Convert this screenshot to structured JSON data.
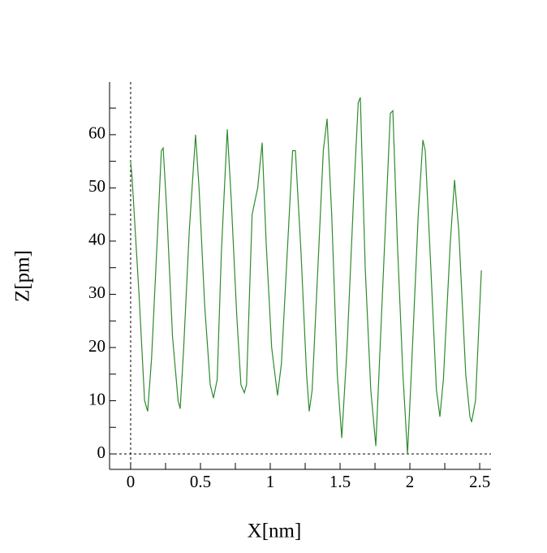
{
  "chart_data": {
    "type": "line",
    "x_label": "X[nm]",
    "y_label": "Z[pm]",
    "x": [
      0,
      0.01,
      0.06,
      0.1,
      0.122,
      0.15,
      0.19,
      0.22,
      0.233,
      0.26,
      0.3,
      0.34,
      0.355,
      0.38,
      0.42,
      0.465,
      0.49,
      0.53,
      0.57,
      0.593,
      0.62,
      0.65,
      0.692,
      0.72,
      0.76,
      0.79,
      0.814,
      0.83,
      0.87,
      0.91,
      0.942,
      0.97,
      1.01,
      1.052,
      1.08,
      1.13,
      1.16,
      1.18,
      1.22,
      1.26,
      1.279,
      1.3,
      1.35,
      1.38,
      1.407,
      1.44,
      1.48,
      1.512,
      1.55,
      1.6,
      1.63,
      1.645,
      1.68,
      1.72,
      1.756,
      1.79,
      1.84,
      1.86,
      1.878,
      1.91,
      1.95,
      1.983,
      2.01,
      2.06,
      2.093,
      2.11,
      2.15,
      2.19,
      2.215,
      2.24,
      2.29,
      2.32,
      2.35,
      2.4,
      2.43,
      2.442,
      2.47,
      2.512
    ],
    "series": [
      {
        "color": "#2e8b2e",
        "values": [
          55,
          52,
          30,
          10,
          8,
          18,
          40,
          57,
          57.5,
          45,
          22,
          10,
          8.5,
          20,
          42,
          60,
          50,
          28,
          13,
          10.5,
          14,
          38,
          61,
          48,
          26,
          13,
          11.5,
          13,
          45,
          50,
          58.5,
          40,
          20,
          11,
          17,
          42,
          57,
          57,
          38,
          15,
          8,
          12,
          40,
          57,
          63,
          45,
          15,
          3,
          20,
          50,
          66,
          67,
          35,
          12,
          1.5,
          22,
          52,
          64,
          64.5,
          40,
          15,
          0,
          15,
          45,
          59,
          57,
          35,
          12,
          7,
          14,
          40,
          51.5,
          42,
          15,
          7,
          6,
          10,
          34.5
        ]
      }
    ],
    "xlim": [
      -0.151,
      2.581
    ],
    "ylim": [
      -2.9,
      69.9
    ],
    "xticks": [
      0,
      0.5,
      1,
      1.5,
      2,
      2.5
    ],
    "yticks": [
      0,
      10,
      20,
      30,
      40,
      50,
      60
    ],
    "xminorticks": [
      0.25,
      0.75,
      1.25,
      1.75,
      2.25
    ],
    "yminorticks": [
      5,
      15,
      25,
      35,
      45,
      55,
      65
    ],
    "zero_lines": true
  }
}
